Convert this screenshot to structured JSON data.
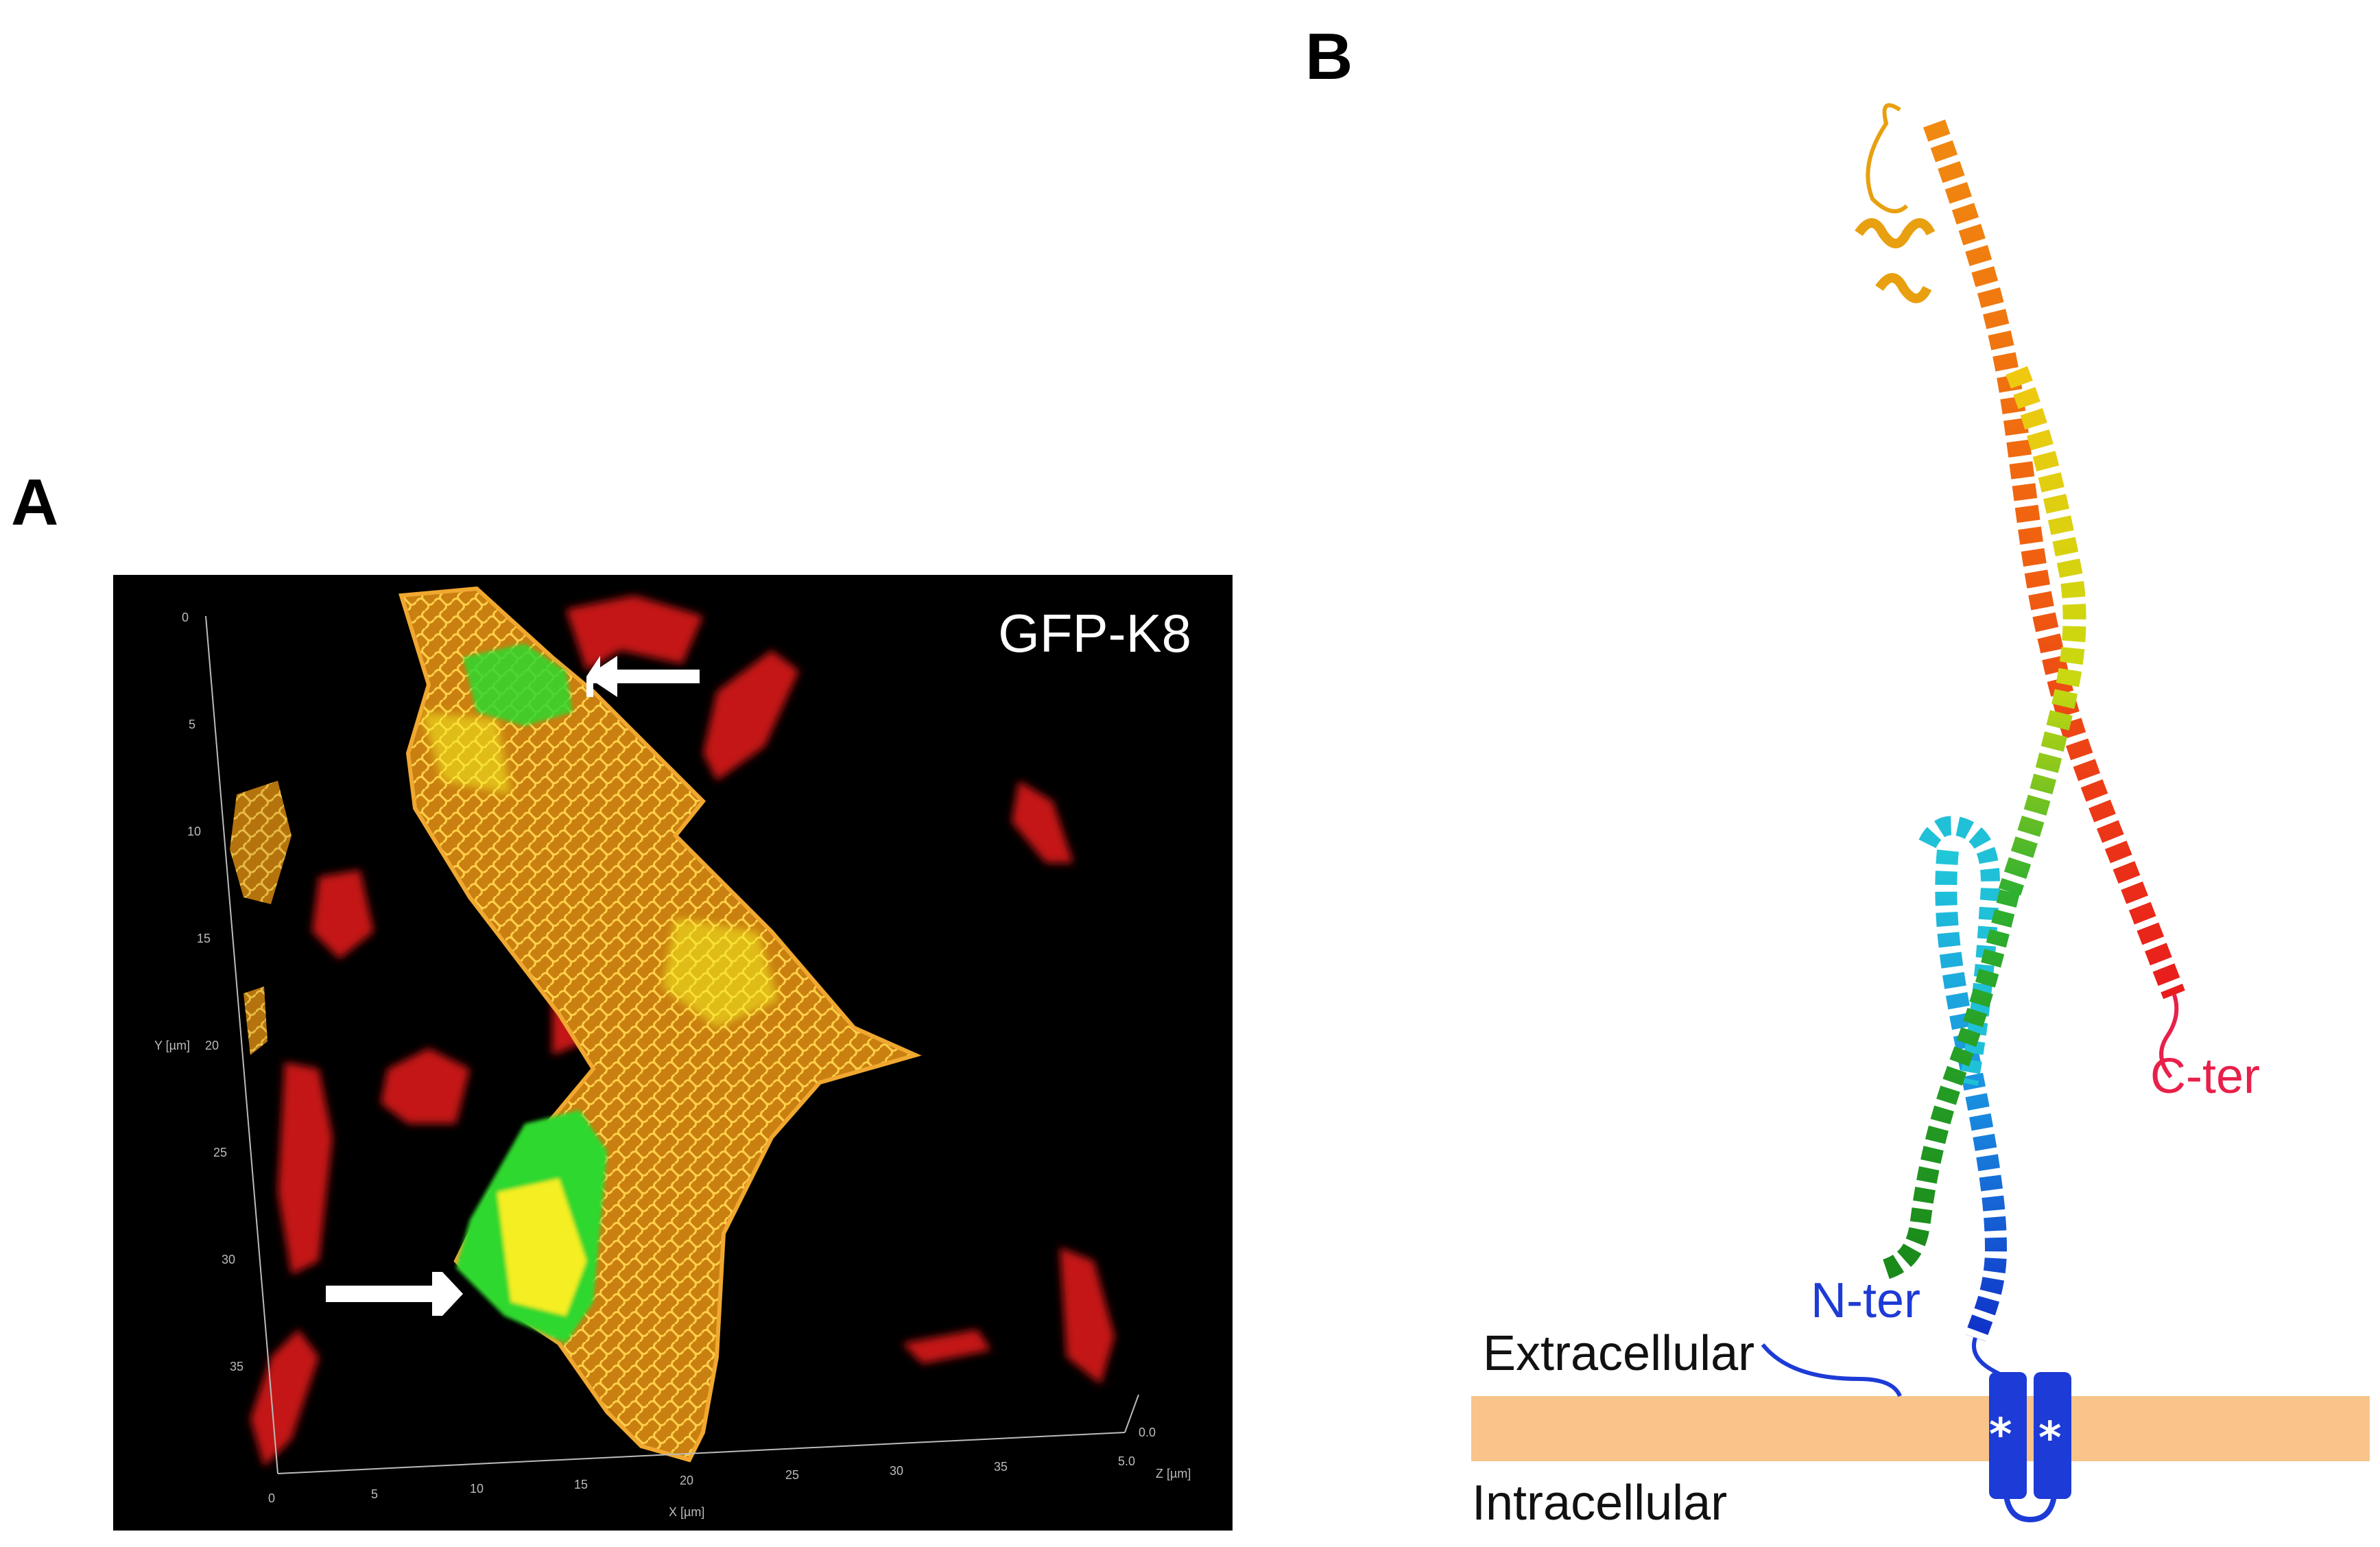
{
  "panels": {
    "a": {
      "letter": "A"
    },
    "b": {
      "letter": "B"
    }
  },
  "micrograph": {
    "label": "GFP-K8",
    "y_axis": {
      "ticks": [
        "0",
        "5",
        "10",
        "15",
        "20",
        "25",
        "30",
        "35"
      ],
      "label": "Y [µm]"
    },
    "x_axis": {
      "ticks": [
        "0",
        "5",
        "10",
        "15",
        "20",
        "25",
        "30",
        "35"
      ],
      "label": "X [µm]"
    },
    "z_axis": {
      "ticks": [
        "0.0",
        "5.0"
      ],
      "label": "Z [µm]"
    },
    "colors": {
      "background": "#000000",
      "keratin": "#e8a020",
      "green": "#2ed82e",
      "red": "#c41414",
      "yellow": "#f4ee20"
    }
  },
  "structure": {
    "c_ter": "C-ter",
    "n_ter": "N-ter",
    "extracellular": "Extracellular",
    "intracellular": "Intracellular",
    "star": "*",
    "colors": {
      "membrane": "#f8c48a",
      "tm": "#1d3bd6",
      "c_ter": "#e8204a",
      "n_ter": "#1d3bd6"
    }
  }
}
